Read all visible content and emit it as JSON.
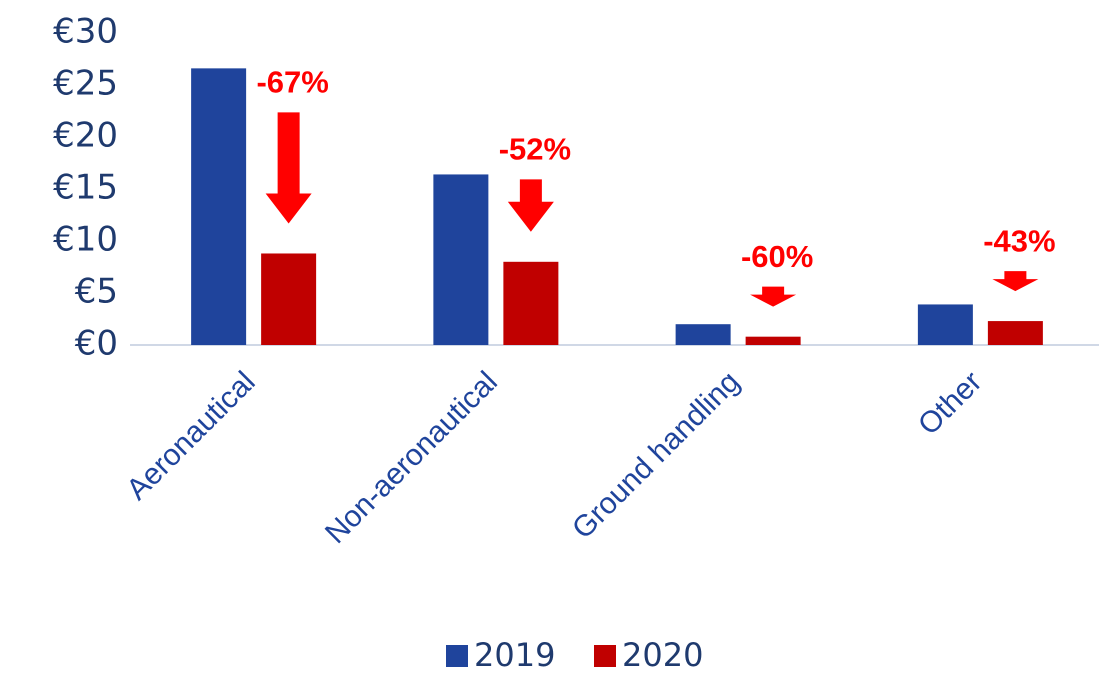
{
  "chart_data": {
    "type": "bar",
    "categories": [
      "Aeronautical",
      "Non-aeronautical",
      "Ground handling",
      "Other"
    ],
    "series": [
      {
        "name": "2019",
        "color": "#1f449c",
        "values": [
          26.6,
          16.4,
          2.0,
          3.9
        ]
      },
      {
        "name": "2020",
        "color": "#c00000",
        "values": [
          8.8,
          8.0,
          0.8,
          2.3
        ]
      }
    ],
    "annotations": [
      "-67%",
      "-52%",
      "-60%",
      "-43%"
    ],
    "annotation_color": "#ff0000",
    "ylim": [
      0,
      30
    ],
    "yticks": [
      {
        "value": 0,
        "label": "€0"
      },
      {
        "value": 5,
        "label": "€5"
      },
      {
        "value": 10,
        "label": "€10"
      },
      {
        "value": 15,
        "label": "€15"
      },
      {
        "value": 20,
        "label": "€20"
      },
      {
        "value": 25,
        "label": "€25"
      },
      {
        "value": 30,
        "label": "€30"
      }
    ],
    "legend": "bottom"
  }
}
